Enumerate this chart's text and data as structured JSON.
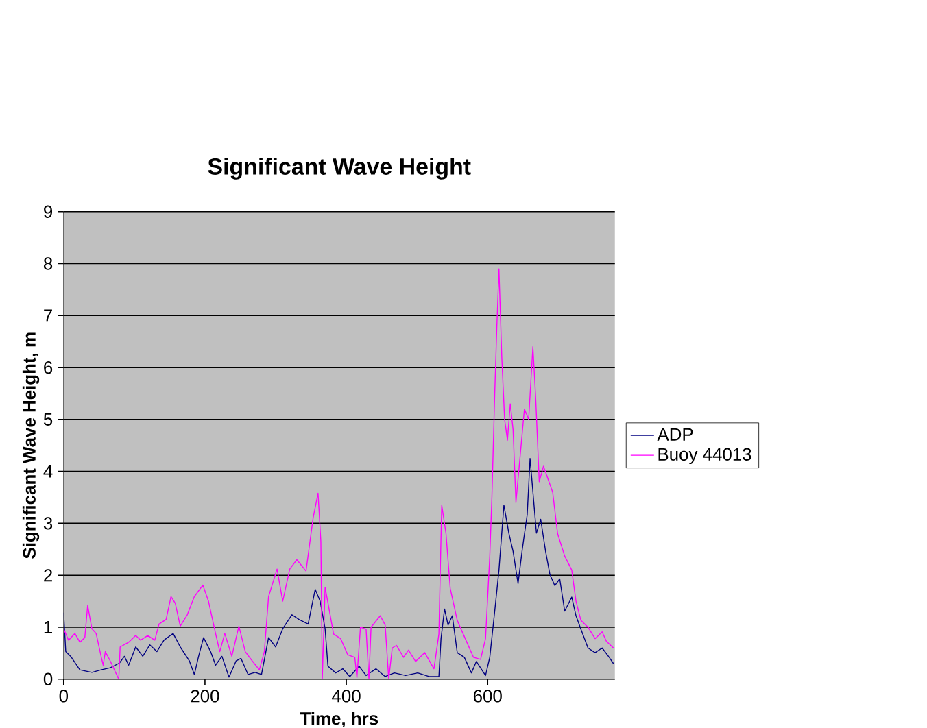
{
  "chart_data": {
    "type": "line",
    "title": "Significant Wave Height",
    "xlabel": "Time, hrs",
    "ylabel": "Significant Wave Height, m",
    "xlim": [
      0,
      780
    ],
    "ylim": [
      0,
      9
    ],
    "xticks": [
      0,
      200,
      400,
      600
    ],
    "yticks": [
      0,
      1,
      2,
      3,
      4,
      5,
      6,
      7,
      8,
      9
    ],
    "grid": "y",
    "legend": "right",
    "marker": "none",
    "line_style": "solid",
    "series": [
      {
        "name": "ADP",
        "color": "#000080",
        "x": [
          0,
          3,
          10,
          23,
          40,
          53,
          66,
          79,
          86,
          92,
          102,
          112,
          122,
          132,
          142,
          155,
          165,
          178,
          185,
          191,
          198,
          208,
          215,
          224,
          234,
          244,
          251,
          261,
          271,
          280,
          290,
          300,
          310,
          323,
          333,
          346,
          356,
          363,
          370,
          374,
          385,
          395,
          405,
          418,
          428,
          442,
          455,
          468,
          484,
          501,
          517,
          531,
          534,
          539,
          544,
          550,
          557,
          567,
          577,
          584,
          597,
          603,
          610,
          616,
          623,
          630,
          636,
          643,
          649,
          656,
          660,
          669,
          675,
          682,
          688,
          695,
          702,
          709,
          719,
          725,
          732,
          742,
          752,
          762,
          772,
          778
        ],
        "values": [
          1.28,
          0.53,
          0.44,
          0.18,
          0.13,
          0.18,
          0.22,
          0.31,
          0.44,
          0.27,
          0.62,
          0.44,
          0.66,
          0.53,
          0.75,
          0.88,
          0.62,
          0.35,
          0.09,
          0.44,
          0.8,
          0.53,
          0.27,
          0.44,
          0.04,
          0.35,
          0.4,
          0.09,
          0.13,
          0.09,
          0.8,
          0.62,
          0.97,
          1.24,
          1.15,
          1.06,
          1.73,
          1.5,
          0.97,
          0.25,
          0.12,
          0.2,
          0.05,
          0.25,
          0.07,
          0.2,
          0.05,
          0.12,
          0.07,
          0.12,
          0.05,
          0.05,
          0.78,
          1.35,
          1.04,
          1.22,
          0.51,
          0.42,
          0.12,
          0.34,
          0.07,
          0.42,
          1.31,
          2.1,
          3.35,
          2.81,
          2.46,
          1.84,
          2.5,
          3.17,
          4.25,
          2.81,
          3.08,
          2.46,
          2.02,
          1.8,
          1.93,
          1.31,
          1.58,
          1.22,
          0.96,
          0.6,
          0.51,
          0.6,
          0.42,
          0.3
        ]
      },
      {
        "name": "Buoy 44013",
        "color": "#ff00ff",
        "x": [
          0,
          7,
          16,
          23,
          30,
          34,
          40,
          46,
          53,
          56,
          59,
          66,
          78,
          80,
          92,
          102,
          109,
          119,
          129,
          135,
          145,
          152,
          158,
          165,
          175,
          185,
          197,
          205,
          215,
          221,
          228,
          238,
          248,
          257,
          267,
          277,
          284,
          290,
          302,
          310,
          320,
          330,
          343,
          353,
          360,
          364,
          366,
          370,
          382,
          392,
          402,
          412,
          415,
          420,
          428,
          432,
          435,
          448,
          455,
          460,
          465,
          471,
          481,
          488,
          498,
          511,
          524,
          531,
          535,
          541,
          547,
          557,
          567,
          580,
          590,
          597,
          603,
          606,
          610,
          613,
          616,
          620,
          624,
          628,
          632,
          636,
          640,
          646,
          652,
          658,
          664,
          668,
          673,
          679,
          692,
          699,
          709,
          719,
          725,
          732,
          742,
          752,
          762,
          768,
          778
        ],
        "values": [
          0.97,
          0.75,
          0.88,
          0.71,
          0.8,
          1.42,
          0.97,
          0.88,
          0.44,
          0.27,
          0.53,
          0.35,
          0,
          0.62,
          0.71,
          0.84,
          0.75,
          0.84,
          0.75,
          1.06,
          1.15,
          1.59,
          1.46,
          1.02,
          1.24,
          1.59,
          1.81,
          1.5,
          0.88,
          0.53,
          0.88,
          0.44,
          1.02,
          0.53,
          0.35,
          0.18,
          0.53,
          1.59,
          2.12,
          1.5,
          2.12,
          2.3,
          2.08,
          3.1,
          3.58,
          2.65,
          0,
          1.77,
          0.87,
          0.78,
          0.47,
          0.42,
          0.03,
          1.0,
          0.96,
          0,
          1.0,
          1.22,
          1.04,
          0,
          0.6,
          0.65,
          0.42,
          0.56,
          0.34,
          0.51,
          0.2,
          0.87,
          3.35,
          2.81,
          1.75,
          1.13,
          0.82,
          0.42,
          0.38,
          0.78,
          2.37,
          3.5,
          5.5,
          6.8,
          7.9,
          6.2,
          5.0,
          4.6,
          5.3,
          4.8,
          3.4,
          4.3,
          5.2,
          5.0,
          6.4,
          5.4,
          3.8,
          4.1,
          3.6,
          2.8,
          2.37,
          2.1,
          1.5,
          1.13,
          1.0,
          0.78,
          0.91,
          0.73,
          0.6
        ]
      }
    ]
  }
}
